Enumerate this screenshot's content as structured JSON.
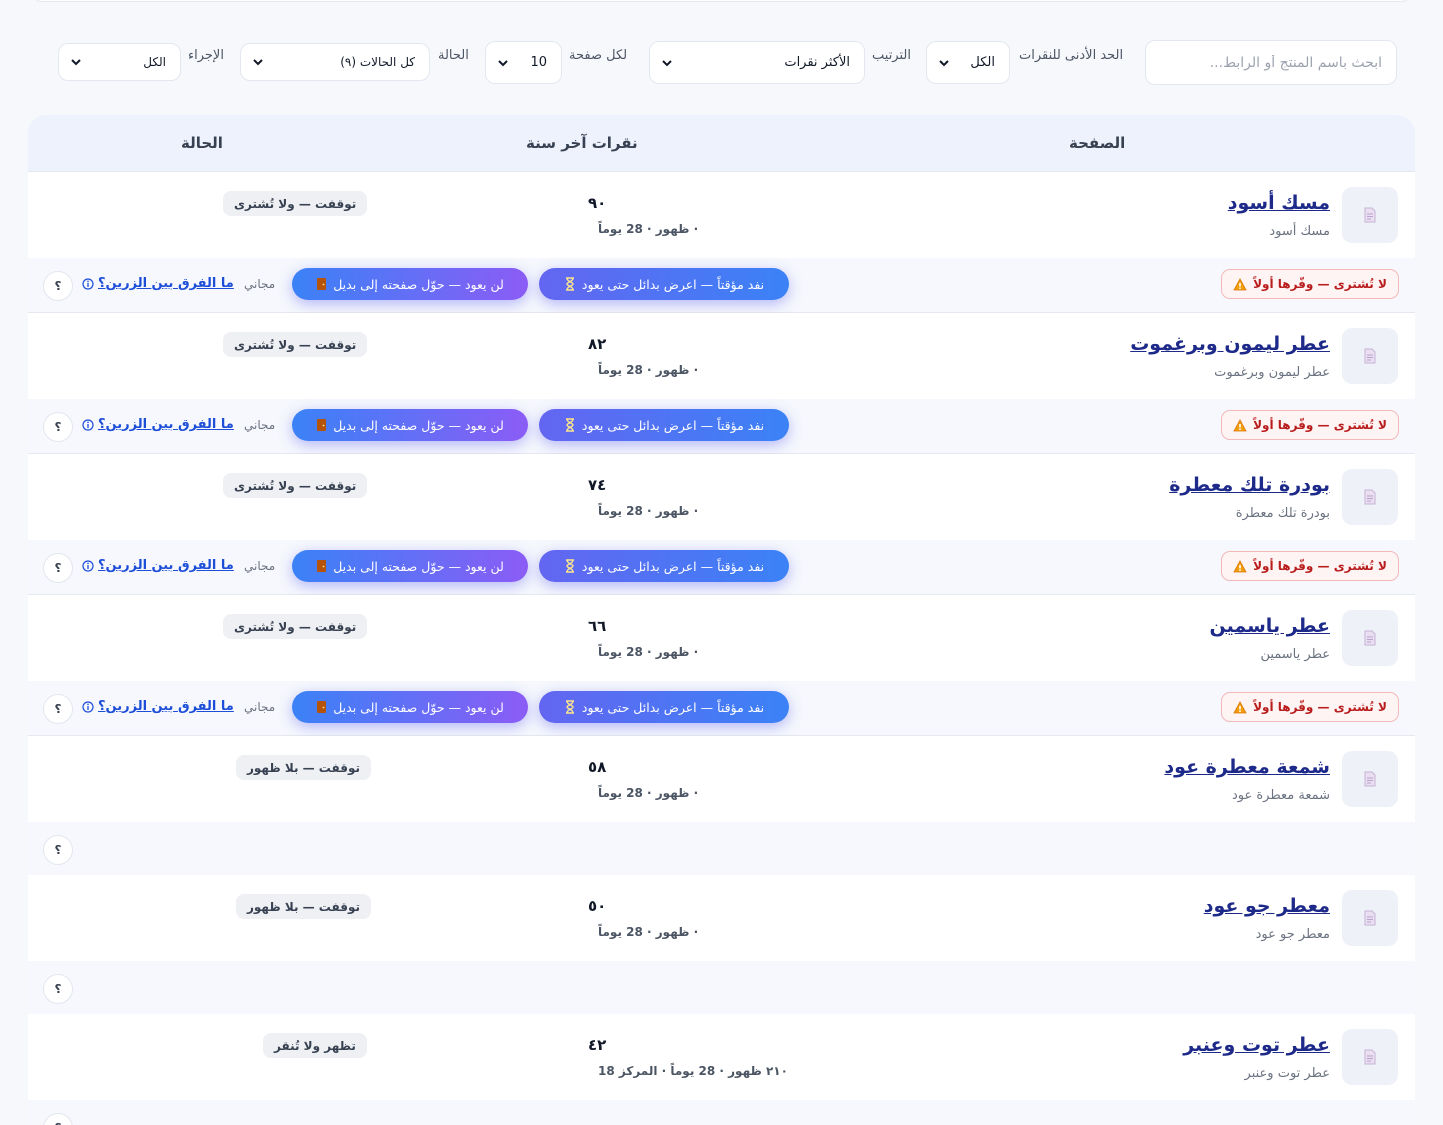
{
  "filters": {
    "search_placeholder": "ابحث باسم المنتج أو الرابط...",
    "min_clicks_label": "الحد الأدنى للنقرات",
    "min_clicks_value": "الكل",
    "sort_label": "الترتيب",
    "sort_value": "الأكثر نقرات",
    "per_page_label": "لكل صفحة",
    "per_page_value": "10",
    "status_label": "الحالة",
    "status_value": "كل الحالات (٩)",
    "action_label": "الإجراء",
    "action_value": "الكل"
  },
  "table": {
    "headers": {
      "page": "الصفحة",
      "clicks": "نقرات آخر سنة",
      "status": "الحالة"
    },
    "actions": {
      "warn_label": "لا تُشترى — وفّرها أولاً",
      "wait_label": "نفد مؤقتاً — اعرض بدائل حتى يعود",
      "never_label": "لن يعود — حوّل صفحته إلى بديل",
      "free_label": "مجاني",
      "diff_label": "ما الفرق بين الزرين؟",
      "help_label": "؟"
    },
    "rows": [
      {
        "name": "مسك أسود",
        "sub": "مسك أسود",
        "clicks": "٩٠",
        "meta": "· ظهور · 28 يوماً",
        "status": "توقفت — ولا تُشترى",
        "has_actions": true
      },
      {
        "name": "عطر ليمون وبرغموت",
        "sub": "عطر ليمون وبرغموت",
        "clicks": "٨٢",
        "meta": "· ظهور · 28 يوماً",
        "status": "توقفت — ولا تُشترى",
        "has_actions": true
      },
      {
        "name": "بودرة تلك معطرة",
        "sub": "بودرة تلك معطرة",
        "clicks": "٧٤",
        "meta": "· ظهور · 28 يوماً",
        "status": "توقفت — ولا تُشترى",
        "has_actions": true
      },
      {
        "name": "عطر ياسمين",
        "sub": "عطر ياسمين",
        "clicks": "٦٦",
        "meta": "· ظهور · 28 يوماً",
        "status": "توقفت — ولا تُشترى",
        "has_actions": true
      },
      {
        "name": "شمعة معطرة عود",
        "sub": "شمعة معطرة عود",
        "clicks": "٥٨",
        "meta": "· ظهور · 28 يوماً",
        "status": "توقفت — بلا ظهور",
        "has_actions": false
      },
      {
        "name": "معطر جو عود",
        "sub": "معطر جو عود",
        "clicks": "٥٠",
        "meta": "· ظهور · 28 يوماً",
        "status": "توقفت — بلا ظهور",
        "has_actions": false
      },
      {
        "name": "عطر توت وعنبر",
        "sub": "عطر توت وعنبر",
        "clicks": "٤٢",
        "meta": "٢١٠ ظهور · 28 يوماً · المركز 18",
        "status": "تظهر ولا تُنقر",
        "has_actions": false
      }
    ]
  },
  "colors": {
    "accent_blue": "#3b82f6",
    "accent_indigo": "#6366f1",
    "accent_violet": "#8b5cf6",
    "warn_red": "#b91c1c",
    "link_navy": "#1e2a8a"
  },
  "icons": {
    "select_chevron": "chevron-down-icon",
    "thumbnail": "document-icon",
    "wait": "hourglass-icon",
    "never": "door-icon",
    "warn": "warning-icon",
    "diff_info": "info-icon"
  }
}
